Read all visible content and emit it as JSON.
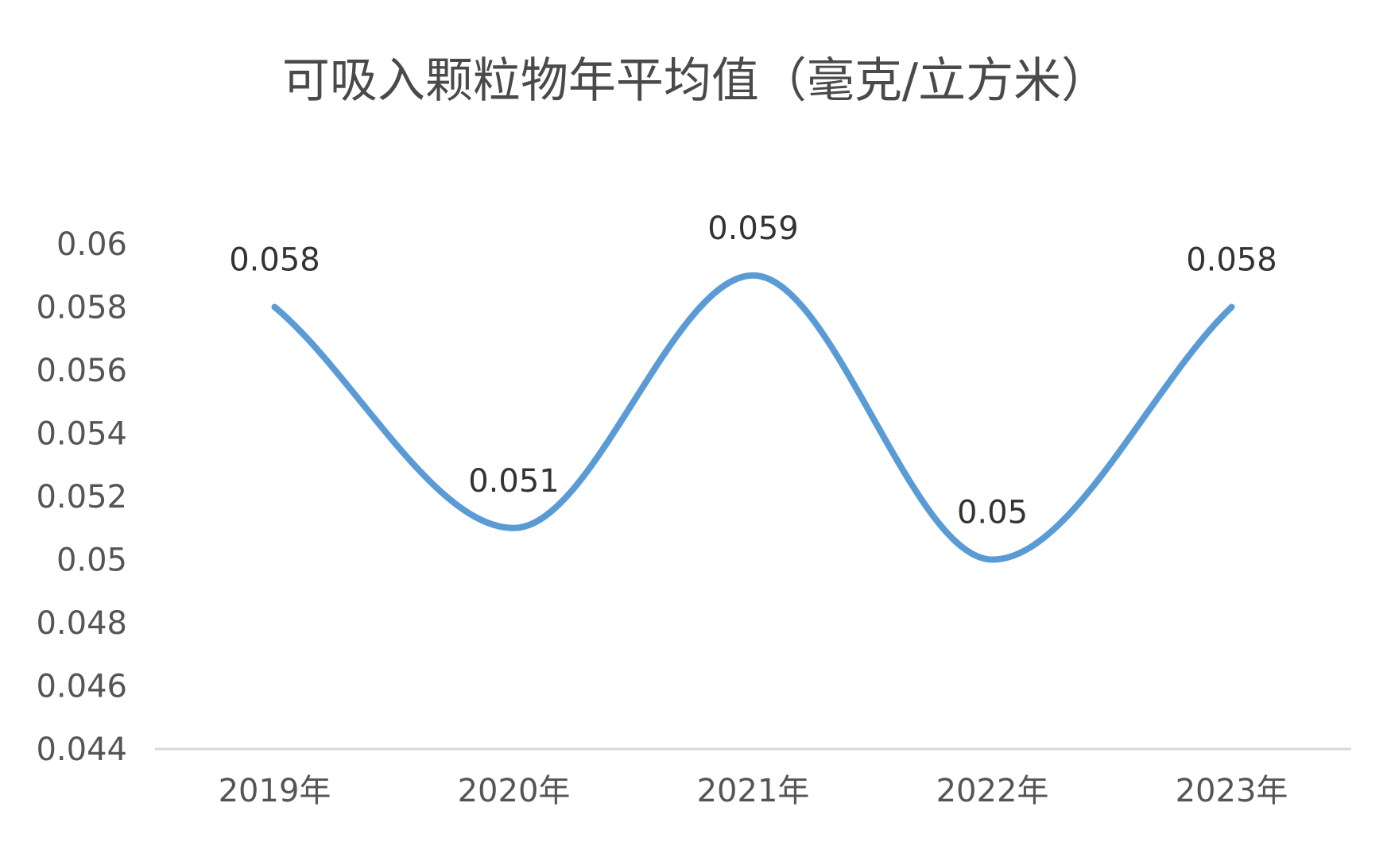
{
  "chart_data": {
    "type": "line",
    "title": "可吸入颗粒物年平均值（毫克/立方米）",
    "xlabel": "",
    "ylabel": "",
    "categories": [
      "2019年",
      "2020年",
      "2021年",
      "2022年",
      "2023年"
    ],
    "series": [
      {
        "values": [
          0.058,
          0.051,
          0.059,
          0.05,
          0.058
        ],
        "data_labels": [
          "0.058",
          "0.051",
          "0.059",
          "0.05",
          "0.058"
        ],
        "color": "#5b9bd5",
        "smooth": true
      }
    ],
    "ylim": [
      0.044,
      0.06
    ],
    "yticks": [
      0.06,
      0.058,
      0.056,
      0.054,
      0.052,
      0.05,
      0.048,
      0.046,
      0.044
    ],
    "ytick_labels": [
      "0.06",
      "0.058",
      "0.056",
      "0.054",
      "0.052",
      "0.05",
      "0.048",
      "0.046",
      "0.044"
    ],
    "grid": false,
    "legend": "none",
    "axis_color": "#d9d9d9"
  }
}
